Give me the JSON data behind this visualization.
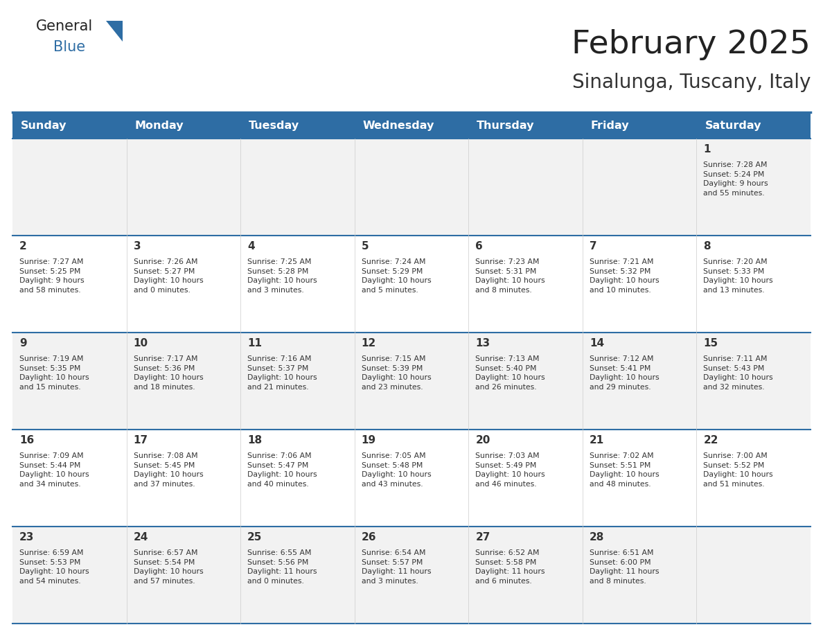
{
  "title": "February 2025",
  "subtitle": "Sinalunga, Tuscany, Italy",
  "header_bg": "#2E6DA4",
  "header_text_color": "#FFFFFF",
  "cell_bg_light": "#F2F2F2",
  "cell_bg_white": "#FFFFFF",
  "text_color": "#333333",
  "line_color": "#2E6DA4",
  "days_of_week": [
    "Sunday",
    "Monday",
    "Tuesday",
    "Wednesday",
    "Thursday",
    "Friday",
    "Saturday"
  ],
  "weeks": [
    [
      {
        "day": "",
        "info": ""
      },
      {
        "day": "",
        "info": ""
      },
      {
        "day": "",
        "info": ""
      },
      {
        "day": "",
        "info": ""
      },
      {
        "day": "",
        "info": ""
      },
      {
        "day": "",
        "info": ""
      },
      {
        "day": "1",
        "info": "Sunrise: 7:28 AM\nSunset: 5:24 PM\nDaylight: 9 hours\nand 55 minutes."
      }
    ],
    [
      {
        "day": "2",
        "info": "Sunrise: 7:27 AM\nSunset: 5:25 PM\nDaylight: 9 hours\nand 58 minutes."
      },
      {
        "day": "3",
        "info": "Sunrise: 7:26 AM\nSunset: 5:27 PM\nDaylight: 10 hours\nand 0 minutes."
      },
      {
        "day": "4",
        "info": "Sunrise: 7:25 AM\nSunset: 5:28 PM\nDaylight: 10 hours\nand 3 minutes."
      },
      {
        "day": "5",
        "info": "Sunrise: 7:24 AM\nSunset: 5:29 PM\nDaylight: 10 hours\nand 5 minutes."
      },
      {
        "day": "6",
        "info": "Sunrise: 7:23 AM\nSunset: 5:31 PM\nDaylight: 10 hours\nand 8 minutes."
      },
      {
        "day": "7",
        "info": "Sunrise: 7:21 AM\nSunset: 5:32 PM\nDaylight: 10 hours\nand 10 minutes."
      },
      {
        "day": "8",
        "info": "Sunrise: 7:20 AM\nSunset: 5:33 PM\nDaylight: 10 hours\nand 13 minutes."
      }
    ],
    [
      {
        "day": "9",
        "info": "Sunrise: 7:19 AM\nSunset: 5:35 PM\nDaylight: 10 hours\nand 15 minutes."
      },
      {
        "day": "10",
        "info": "Sunrise: 7:17 AM\nSunset: 5:36 PM\nDaylight: 10 hours\nand 18 minutes."
      },
      {
        "day": "11",
        "info": "Sunrise: 7:16 AM\nSunset: 5:37 PM\nDaylight: 10 hours\nand 21 minutes."
      },
      {
        "day": "12",
        "info": "Sunrise: 7:15 AM\nSunset: 5:39 PM\nDaylight: 10 hours\nand 23 minutes."
      },
      {
        "day": "13",
        "info": "Sunrise: 7:13 AM\nSunset: 5:40 PM\nDaylight: 10 hours\nand 26 minutes."
      },
      {
        "day": "14",
        "info": "Sunrise: 7:12 AM\nSunset: 5:41 PM\nDaylight: 10 hours\nand 29 minutes."
      },
      {
        "day": "15",
        "info": "Sunrise: 7:11 AM\nSunset: 5:43 PM\nDaylight: 10 hours\nand 32 minutes."
      }
    ],
    [
      {
        "day": "16",
        "info": "Sunrise: 7:09 AM\nSunset: 5:44 PM\nDaylight: 10 hours\nand 34 minutes."
      },
      {
        "day": "17",
        "info": "Sunrise: 7:08 AM\nSunset: 5:45 PM\nDaylight: 10 hours\nand 37 minutes."
      },
      {
        "day": "18",
        "info": "Sunrise: 7:06 AM\nSunset: 5:47 PM\nDaylight: 10 hours\nand 40 minutes."
      },
      {
        "day": "19",
        "info": "Sunrise: 7:05 AM\nSunset: 5:48 PM\nDaylight: 10 hours\nand 43 minutes."
      },
      {
        "day": "20",
        "info": "Sunrise: 7:03 AM\nSunset: 5:49 PM\nDaylight: 10 hours\nand 46 minutes."
      },
      {
        "day": "21",
        "info": "Sunrise: 7:02 AM\nSunset: 5:51 PM\nDaylight: 10 hours\nand 48 minutes."
      },
      {
        "day": "22",
        "info": "Sunrise: 7:00 AM\nSunset: 5:52 PM\nDaylight: 10 hours\nand 51 minutes."
      }
    ],
    [
      {
        "day": "23",
        "info": "Sunrise: 6:59 AM\nSunset: 5:53 PM\nDaylight: 10 hours\nand 54 minutes."
      },
      {
        "day": "24",
        "info": "Sunrise: 6:57 AM\nSunset: 5:54 PM\nDaylight: 10 hours\nand 57 minutes."
      },
      {
        "day": "25",
        "info": "Sunrise: 6:55 AM\nSunset: 5:56 PM\nDaylight: 11 hours\nand 0 minutes."
      },
      {
        "day": "26",
        "info": "Sunrise: 6:54 AM\nSunset: 5:57 PM\nDaylight: 11 hours\nand 3 minutes."
      },
      {
        "day": "27",
        "info": "Sunrise: 6:52 AM\nSunset: 5:58 PM\nDaylight: 11 hours\nand 6 minutes."
      },
      {
        "day": "28",
        "info": "Sunrise: 6:51 AM\nSunset: 6:00 PM\nDaylight: 11 hours\nand 8 minutes."
      },
      {
        "day": "",
        "info": ""
      }
    ]
  ],
  "logo_general_color": "#222222",
  "logo_blue_color": "#2E6DA4",
  "triangle_color": "#2E6DA4"
}
